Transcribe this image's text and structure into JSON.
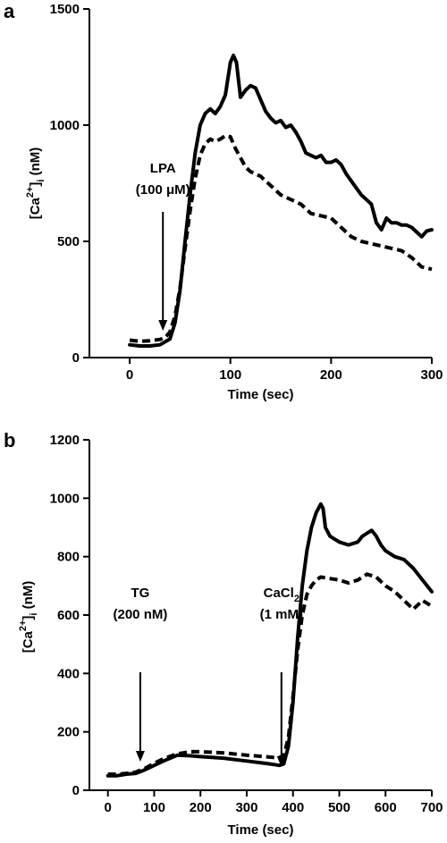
{
  "chart_data": [
    {
      "type": "line",
      "panel": "a",
      "xlabel": "Time (sec)",
      "ylabel": "[Ca2+]i (nM)",
      "ylabel_parts": {
        "open": "[Ca",
        "sup": "2+",
        "close": "]",
        "sub": "i",
        "unit": " (nM)"
      },
      "xlim": [
        -40,
        300
      ],
      "ylim": [
        0,
        1500
      ],
      "xticks": [
        0,
        100,
        200,
        300
      ],
      "yticks": [
        0,
        500,
        1000,
        1500
      ],
      "grid": false,
      "annotations": [
        {
          "lines": [
            "LPA",
            "(100 μM)"
          ],
          "x": 33
        }
      ],
      "series": [
        {
          "style": "solid",
          "x": [
            0,
            10,
            20,
            30,
            40,
            45,
            50,
            55,
            60,
            65,
            70,
            75,
            80,
            85,
            90,
            95,
            100,
            103,
            106,
            110,
            115,
            120,
            125,
            130,
            135,
            140,
            145,
            150,
            155,
            160,
            165,
            170,
            175,
            180,
            185,
            190,
            195,
            200,
            205,
            210,
            215,
            220,
            225,
            230,
            235,
            240,
            245,
            250,
            255,
            260,
            265,
            270,
            275,
            280,
            285,
            290,
            295,
            300
          ],
          "y": [
            55,
            50,
            50,
            55,
            80,
            150,
            290,
            500,
            700,
            880,
            1000,
            1050,
            1070,
            1050,
            1080,
            1130,
            1270,
            1300,
            1270,
            1120,
            1150,
            1170,
            1160,
            1110,
            1060,
            1030,
            1010,
            1020,
            990,
            1000,
            970,
            930,
            880,
            870,
            860,
            870,
            840,
            840,
            850,
            830,
            790,
            760,
            730,
            700,
            680,
            660,
            580,
            550,
            600,
            580,
            580,
            570,
            570,
            560,
            540,
            520,
            545,
            550
          ]
        },
        {
          "style": "dashed",
          "x": [
            0,
            10,
            20,
            30,
            35,
            40,
            45,
            50,
            55,
            60,
            65,
            70,
            75,
            80,
            85,
            90,
            95,
            100,
            105,
            110,
            115,
            120,
            125,
            130,
            135,
            140,
            145,
            150,
            160,
            170,
            180,
            190,
            200,
            210,
            220,
            230,
            240,
            250,
            260,
            270,
            280,
            290,
            300
          ],
          "y": [
            75,
            70,
            72,
            78,
            85,
            110,
            180,
            300,
            470,
            630,
            770,
            870,
            920,
            940,
            930,
            940,
            955,
            950,
            900,
            860,
            820,
            800,
            790,
            780,
            760,
            740,
            720,
            700,
            680,
            660,
            620,
            610,
            600,
            560,
            520,
            500,
            490,
            480,
            470,
            460,
            430,
            390,
            380
          ]
        }
      ]
    },
    {
      "type": "line",
      "panel": "b",
      "xlabel": "Time (sec)",
      "ylabel": "[Ca2+]i (nM)",
      "ylabel_parts": {
        "open": "[Ca",
        "sup": "2+",
        "close": "]",
        "sub": "i",
        "unit": " (nM)"
      },
      "xlim": [
        -40,
        700
      ],
      "ylim": [
        0,
        1200
      ],
      "xticks": [
        0,
        100,
        200,
        300,
        400,
        500,
        600,
        700
      ],
      "yticks": [
        0,
        200,
        400,
        600,
        800,
        1000,
        1200
      ],
      "grid": false,
      "annotations": [
        {
          "lines": [
            "TG",
            "(200 nM)"
          ],
          "x": 70
        },
        {
          "lines": [
            "CaCl",
            "(1 mM)"
          ],
          "sub2": true,
          "x": 375
        }
      ],
      "series": [
        {
          "style": "solid",
          "x": [
            0,
            20,
            40,
            60,
            80,
            100,
            120,
            150,
            180,
            200,
            250,
            300,
            340,
            360,
            370,
            380,
            390,
            400,
            410,
            420,
            430,
            440,
            450,
            460,
            465,
            470,
            480,
            490,
            500,
            520,
            540,
            550,
            560,
            570,
            580,
            590,
            600,
            620,
            640,
            660,
            680,
            700
          ],
          "y": [
            50,
            50,
            55,
            58,
            70,
            85,
            100,
            120,
            118,
            115,
            110,
            100,
            92,
            88,
            85,
            90,
            150,
            300,
            520,
            700,
            820,
            900,
            950,
            980,
            965,
            900,
            870,
            860,
            850,
            840,
            850,
            870,
            880,
            890,
            870,
            840,
            820,
            800,
            790,
            760,
            720,
            680
          ]
        },
        {
          "style": "dashed",
          "x": [
            0,
            20,
            40,
            60,
            80,
            100,
            120,
            150,
            180,
            200,
            250,
            300,
            340,
            360,
            370,
            380,
            390,
            400,
            410,
            420,
            430,
            440,
            450,
            460,
            480,
            500,
            520,
            540,
            560,
            580,
            600,
            620,
            640,
            660,
            680,
            700
          ],
          "y": [
            55,
            55,
            58,
            62,
            75,
            92,
            108,
            125,
            132,
            132,
            128,
            120,
            115,
            112,
            112,
            118,
            180,
            320,
            480,
            600,
            670,
            700,
            720,
            730,
            725,
            720,
            710,
            720,
            740,
            730,
            700,
            680,
            650,
            620,
            650,
            630
          ]
        }
      ]
    }
  ]
}
